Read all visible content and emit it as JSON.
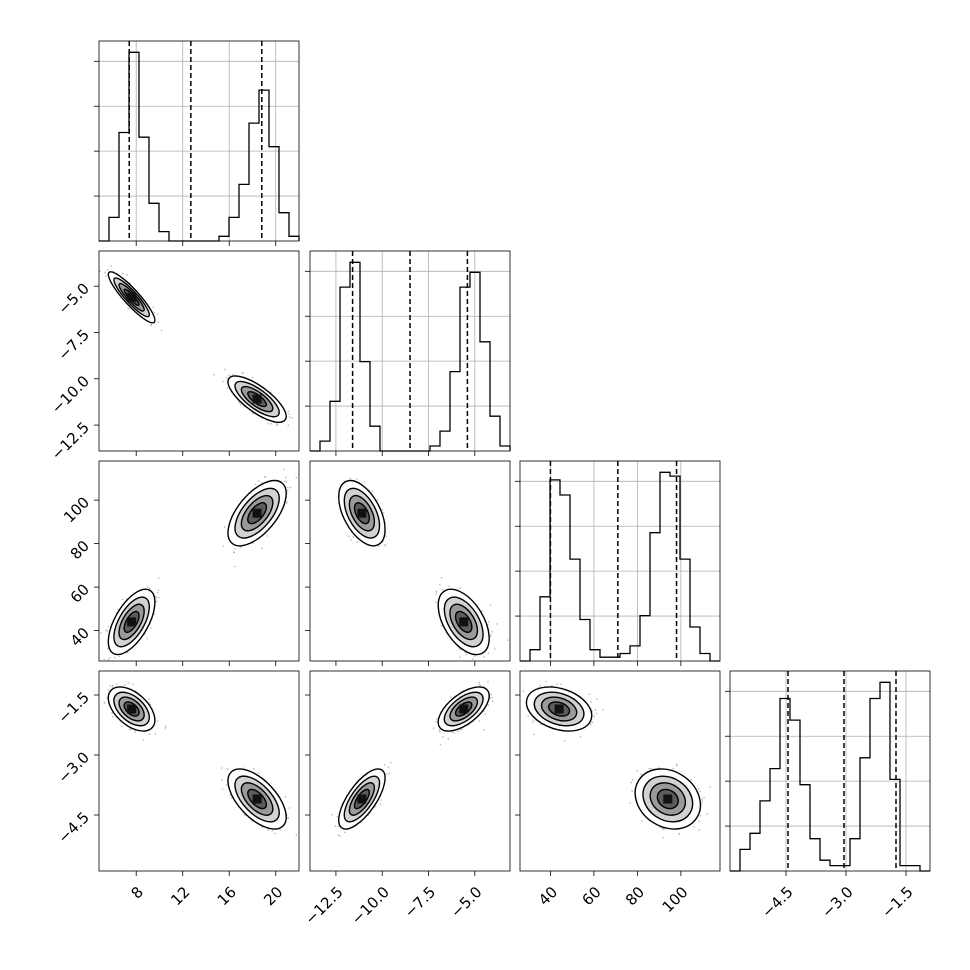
{
  "chart_data": {
    "type": "corner",
    "parameters": 4,
    "ranges": [
      [
        4.8,
        22.0
      ],
      [
        -13.9,
        -3.1
      ],
      [
        26,
        118
      ],
      [
        -5.9,
        -0.9
      ]
    ],
    "ticks": [
      {
        "values": [
          8,
          12,
          16,
          20
        ],
        "labels": [
          "8",
          "12",
          "16",
          "20"
        ]
      },
      {
        "values": [
          -12.5,
          -10.0,
          -7.5,
          -5.0
        ],
        "labels": [
          "−12.5",
          "−10.0",
          "−7.5",
          "−5.0"
        ]
      },
      {
        "values": [
          40,
          60,
          80,
          100
        ],
        "labels": [
          "40",
          "60",
          "80",
          "100"
        ]
      },
      {
        "values": [
          -4.5,
          -3.0,
          -1.5
        ],
        "labels": [
          "−4.5",
          "−3.0",
          "−1.5"
        ]
      }
    ],
    "quantiles": [
      [
        7.4,
        12.7,
        18.8
      ],
      [
        -11.6,
        -8.5,
        -5.4
      ],
      [
        40,
        71,
        98
      ],
      [
        -4.45,
        -3.05,
        -1.75
      ]
    ],
    "modes": [
      {
        "weight": 0.5,
        "mean": [
          7.6,
          -5.6,
          44,
          -1.85
        ],
        "sd": [
          0.8,
          0.55,
          6,
          0.22
        ]
      },
      {
        "weight": 0.5,
        "mean": [
          18.4,
          -11.1,
          94,
          -4.1
        ],
        "sd": [
          1.0,
          0.5,
          6,
          0.3
        ]
      }
    ],
    "correlations": {
      "1-0": [
        -0.9,
        -0.75
      ],
      "2-0": [
        0.6,
        0.6
      ],
      "2-1": [
        -0.5,
        -0.5
      ],
      "3-0": [
        -0.5,
        -0.6
      ],
      "3-1": [
        0.6,
        0.7
      ],
      "3-2": [
        -0.3,
        -0.2
      ]
    },
    "histograms": [
      {
        "bins": 20,
        "counts": [
          0,
          5,
          23,
          40,
          22,
          8,
          2,
          0,
          0,
          0,
          0,
          0,
          1,
          5,
          12,
          25,
          32,
          20,
          6,
          1
        ]
      },
      {
        "bins": 20,
        "counts": [
          0,
          2,
          10,
          33,
          38,
          18,
          5,
          0,
          0,
          0,
          0,
          0,
          1,
          4,
          16,
          33,
          36,
          22,
          7,
          1
        ]
      },
      {
        "bins": 20,
        "counts": [
          0,
          3,
          17,
          48,
          44,
          27,
          11,
          3,
          1,
          1,
          2,
          4,
          12,
          34,
          50,
          49,
          27,
          9,
          2,
          0
        ]
      },
      {
        "bins": 20,
        "counts": [
          0,
          4,
          7,
          13,
          19,
          32,
          28,
          16,
          6,
          2,
          1,
          1,
          6,
          21,
          32,
          35,
          17,
          1,
          1,
          0
        ]
      }
    ],
    "grid": true,
    "colors": {
      "contour": "#000000",
      "points": "#000000",
      "hist": "#000000"
    }
  }
}
